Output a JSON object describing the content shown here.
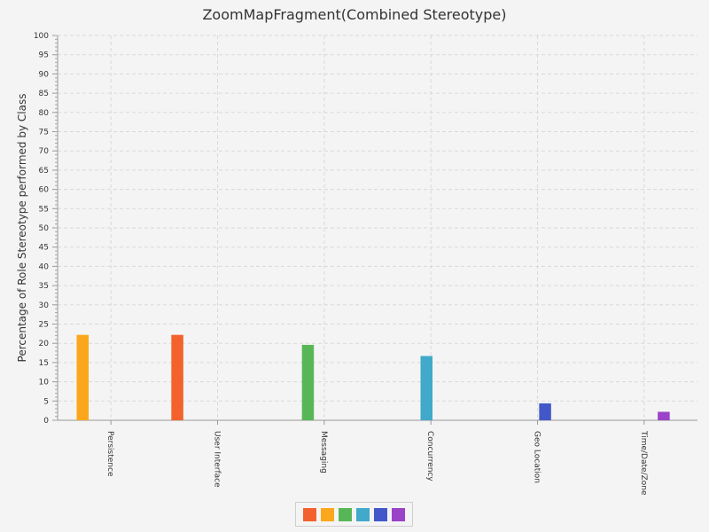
{
  "chart_data": {
    "type": "bar",
    "title": "ZoomMapFragment(Combined Stereotype)",
    "xlabel": "",
    "ylabel": "Percentage of Role Stereotype performed by Class",
    "ylim": [
      0,
      100
    ],
    "ytick_step": 5,
    "grid": true,
    "legend_position": "bottom",
    "categories": [
      "Persistence",
      "User Interface",
      "Messaging",
      "Concurrency",
      "Geo Location",
      "Time/Date/Zone"
    ],
    "series": [
      {
        "color": "#f3622d",
        "values": [
          0,
          22.2,
          0,
          0,
          0,
          0
        ]
      },
      {
        "color": "#fba71b",
        "values": [
          22.2,
          0,
          0,
          0,
          0,
          0
        ]
      },
      {
        "color": "#57b757",
        "values": [
          0,
          0,
          19.6,
          0,
          0,
          0
        ]
      },
      {
        "color": "#41a9c9",
        "values": [
          0,
          0,
          0,
          16.7,
          0,
          0
        ]
      },
      {
        "color": "#4258c9",
        "values": [
          0,
          0,
          0,
          0,
          4.4,
          0
        ]
      },
      {
        "color": "#9a42c8",
        "values": [
          0,
          0,
          0,
          0,
          0,
          2.2
        ]
      }
    ]
  }
}
